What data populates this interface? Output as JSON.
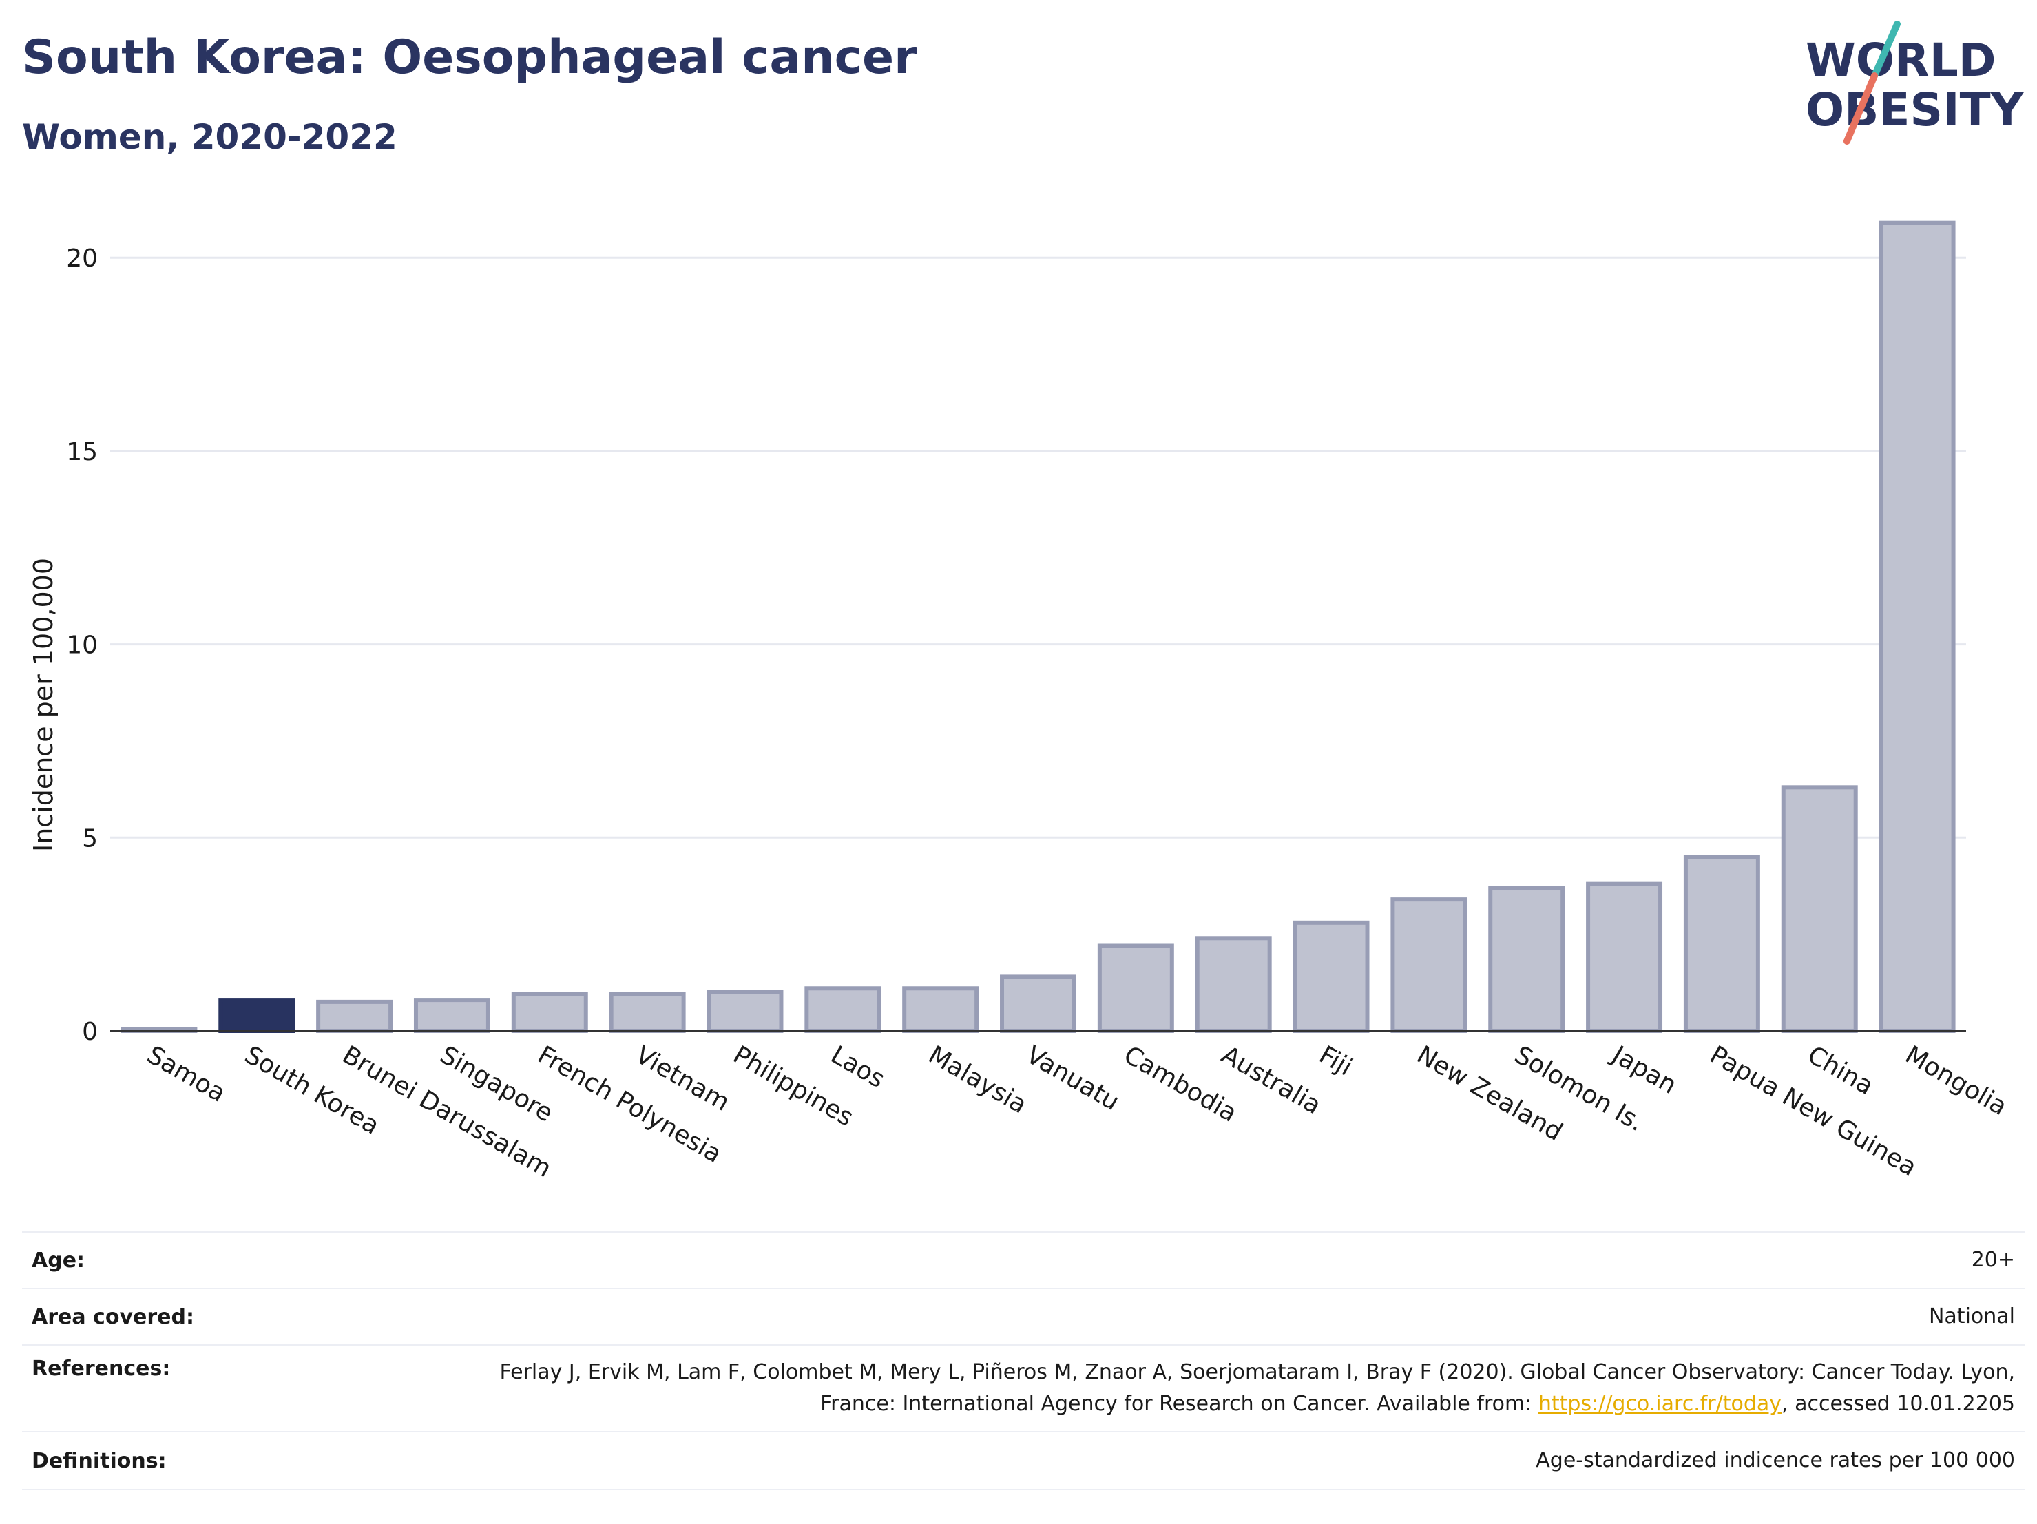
{
  "header": {
    "title": "South Korea: Oesophageal cancer",
    "subtitle": "Women, 2020-2022"
  },
  "logo": {
    "line1": "WORLD",
    "line2": "OBESITY",
    "slash_colors": [
      "#3fb7b0",
      "#e8725f"
    ],
    "text_color": "#2a3461"
  },
  "colors": {
    "highlight": "#283360",
    "bar_fill": "#bfc2d0",
    "bar_stroke": "#989db5",
    "grid": "#e6e8ef",
    "link": "#e6ac00"
  },
  "chart_data": {
    "type": "bar",
    "ylabel": "Incidence per 100,000",
    "xlabel": "",
    "ylim": [
      0,
      21.5
    ],
    "yticks": [
      0,
      5,
      10,
      15,
      20
    ],
    "grid": true,
    "highlight_category": "South Korea",
    "categories": [
      "Samoa",
      "South Korea",
      "Brunei Darussalam",
      "Singapore",
      "French Polynesia",
      "Vietnam",
      "Philippines",
      "Laos",
      "Malaysia",
      "Vanuatu",
      "Cambodia",
      "Australia",
      "Fiji",
      "New Zealand",
      "Solomon Is.",
      "Japan",
      "Papua New Guinea",
      "China",
      "Mongolia"
    ],
    "values": [
      0.05,
      0.8,
      0.75,
      0.8,
      0.95,
      0.95,
      1.0,
      1.1,
      1.1,
      1.4,
      2.2,
      2.4,
      2.8,
      3.4,
      3.7,
      3.8,
      4.5,
      6.3,
      20.9
    ]
  },
  "info": {
    "age_label": "Age:",
    "age_value": "20+",
    "area_label": "Area covered:",
    "area_value": "National",
    "references_label": "References:",
    "references_text_1": "Ferlay J, Ervik M, Lam F, Colombet M, Mery L, Piñeros M, Znaor A, Soerjomataram I, Bray F (2020). Global Cancer Observatory: Cancer Today. Lyon, France: International Agency for Research on Cancer. Available from: ",
    "references_link": "https://gco.iarc.fr/today",
    "references_text_2": ", accessed 10.01.2205",
    "definitions_label": "Definitions:",
    "definitions_value": "Age-standardized indicence rates per 100 000"
  }
}
